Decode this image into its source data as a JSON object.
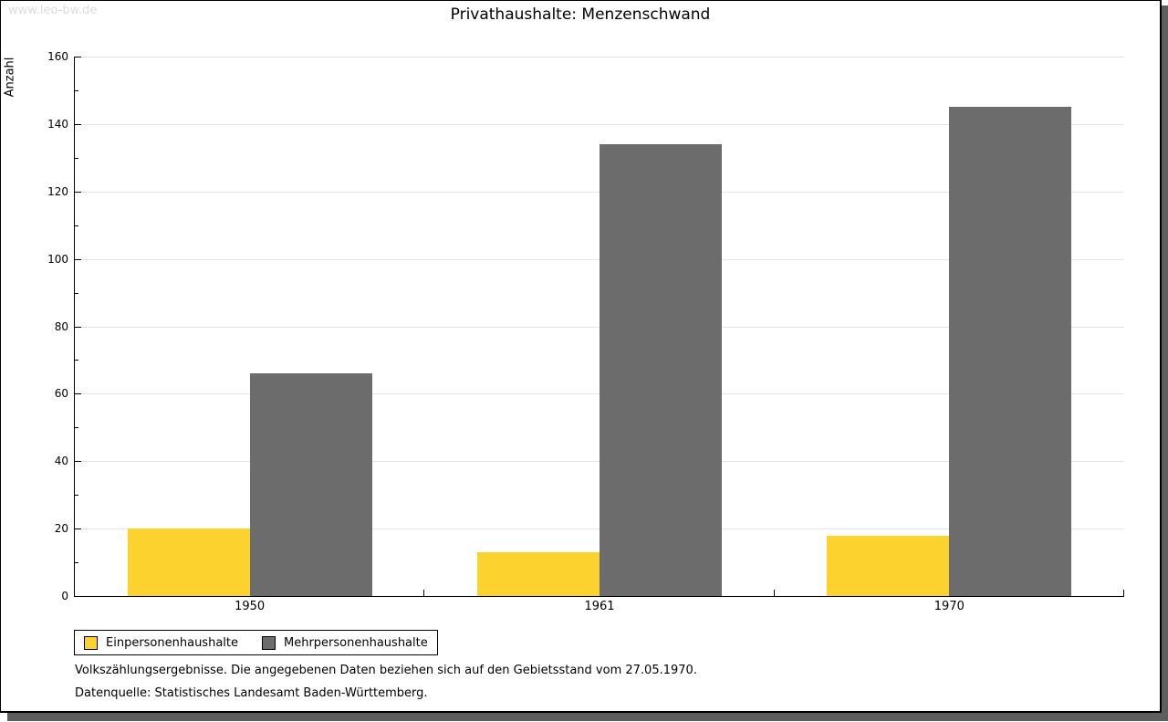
{
  "watermark": "www.leo-bw.de",
  "title": "Privathaushalte: Menzenschwand",
  "chart_data": {
    "type": "bar",
    "title": "Privathaushalte: Menzenschwand",
    "categories": [
      "1950",
      "1961",
      "1970"
    ],
    "series": [
      {
        "name": "Einpersonenhaushalte",
        "color": "#fcd32e",
        "values": [
          20,
          13,
          18
        ]
      },
      {
        "name": "Mehrpersonenhaushalte",
        "color": "#6c6c6c",
        "values": [
          66,
          134,
          145
        ]
      }
    ],
    "xlabel": "",
    "ylabel": "Anzahl",
    "ylim": [
      0,
      160
    ],
    "ytick_step": 20,
    "minor_tick_step": 10,
    "grid": true,
    "legend_position": "bottom-left"
  },
  "footnotes": [
    "Volkszählungsergebnisse. Die angegebenen Daten beziehen sich auf den Gebietsstand vom 27.05.1970.",
    "Datenquelle: Statistisches Landesamt Baden-Württemberg."
  ],
  "colors": {
    "grid": "#e4e4e4",
    "axis": "#000000",
    "watermark": "#dcdcdc",
    "frame_shadow": "#5e5e5e",
    "background": "#ffffff"
  }
}
